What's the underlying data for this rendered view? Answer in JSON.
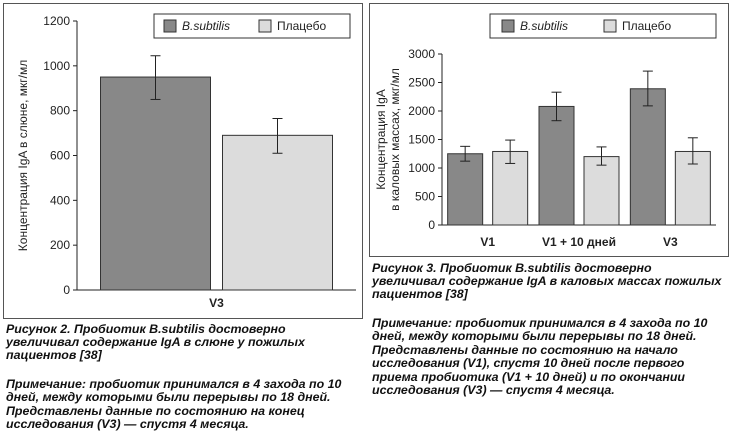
{
  "chart_data": [
    {
      "type": "bar",
      "categories": [
        "V3"
      ],
      "series": [
        {
          "name": "B.subtilis",
          "values": [
            950
          ],
          "error": [
            [
              850,
              1045
            ]
          ],
          "color": "#888888"
        },
        {
          "name": "Плацебо",
          "values": [
            690
          ],
          "error": [
            [
              610,
              765
            ]
          ],
          "color": "#dcdcdc"
        }
      ],
      "ylabel": "Концентрация IgA в слюне, мкг/мл",
      "ylim": [
        0,
        1200
      ],
      "yticks": [
        "0",
        "200",
        "400",
        "600",
        "800",
        "1000",
        "1200"
      ],
      "legend": "top-right",
      "grid": false
    },
    {
      "type": "bar",
      "categories": [
        "V1",
        "V1 + 10 дней",
        "V3"
      ],
      "series": [
        {
          "name": "B.subtilis",
          "values": [
            1250,
            2080,
            2390
          ],
          "error": [
            [
              1120,
              1380
            ],
            [
              1830,
              2330
            ],
            [
              2090,
              2700
            ]
          ],
          "color": "#888888"
        },
        {
          "name": "Плацебо",
          "values": [
            1290,
            1200,
            1290
          ],
          "error": [
            [
              1080,
              1490
            ],
            [
              1050,
              1370
            ],
            [
              1070,
              1530
            ]
          ],
          "color": "#dcdcdc"
        }
      ],
      "ylabel": [
        "Концентрация IgA",
        "в каловых массах, мкг/мл"
      ],
      "ylim": [
        0,
        3000
      ],
      "yticks": [
        "0",
        "500",
        "1000",
        "1500",
        "2000",
        "2500",
        "3000"
      ],
      "legend": "top-right",
      "grid": false
    }
  ],
  "captions": {
    "left_title": "Рисунок 2. Пробиотик B.subtilis достоверно увеличивал содержание IgA в слюне у пожилых пациентов [38]",
    "left_note": "Примечание: пробиотик принимался в 4 захода по 10 дней, между которыми были перерывы по 18 дней. Представлены данные по состоянию на конец исследования (V3) — спустя 4 месяца.",
    "right_title": "Рисунок 3. Пробиотик B.subtilis достоверно увеличивал содержание IgA в каловых массах пожилых пациентов [38]",
    "right_note": "Примечание: пробиотик принимался в 4 захода по 10 дней, между которыми были перерывы по 18 дней. Представлены данные по состоянию на начало исследования (V1), спустя 10 дней после первого приема пробиотика (V1 + 10 дней) и по окончании исследования (V3) — спустя 4 месяца."
  }
}
